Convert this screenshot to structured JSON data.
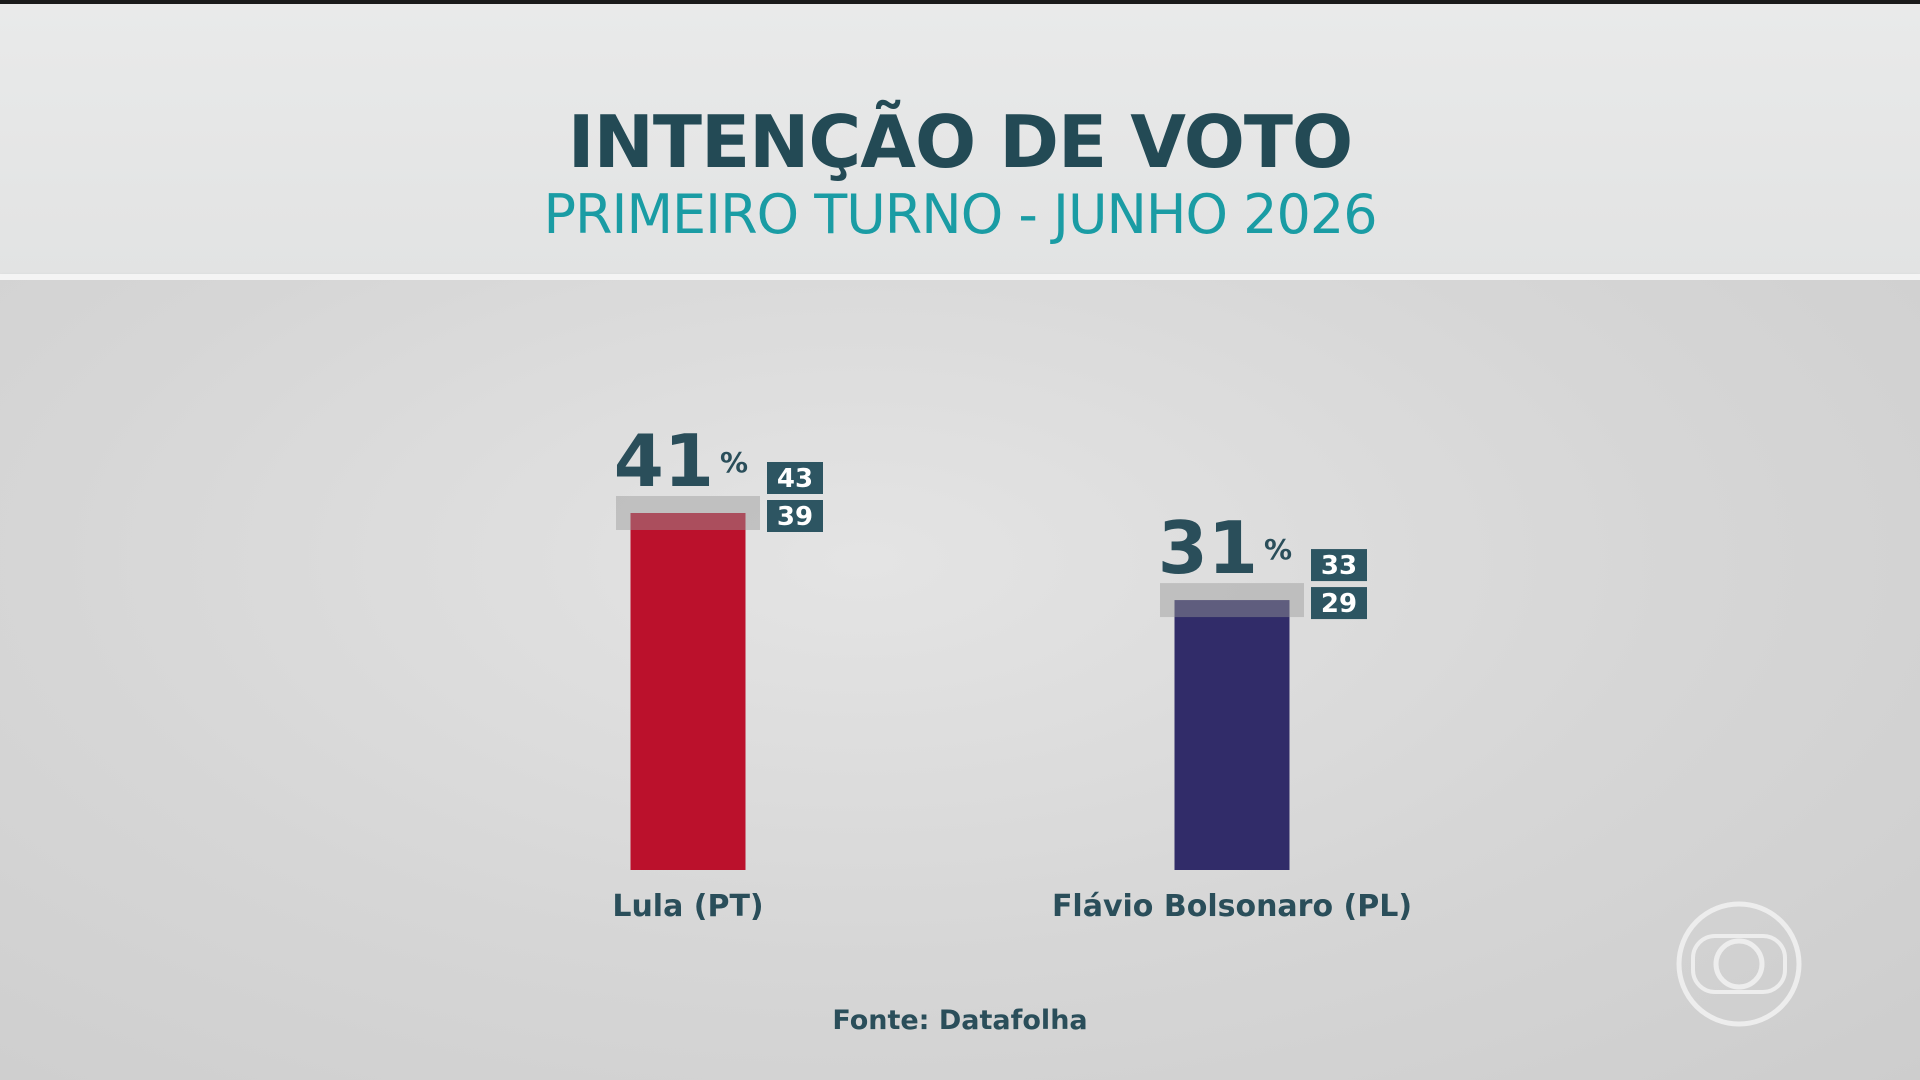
{
  "header": {
    "title": "INTENÇÃO DE VOTO",
    "subtitle": "PRIMEIRO TURNO - JUNHO 2026"
  },
  "source": "Fonte: Datafolha",
  "chart_data": {
    "type": "bar",
    "title": "INTENÇÃO DE VOTO",
    "subtitle": "PRIMEIRO TURNO - JUNHO 2026",
    "categories": [
      "Lula (PT)",
      "Flávio Bolsonaro (PL)"
    ],
    "values": [
      41,
      31
    ],
    "value_labels": [
      "41",
      "31"
    ],
    "unit": "%",
    "ranges": [
      {
        "high": "43",
        "low": "39",
        "high_value": 43,
        "low_value": 39
      },
      {
        "high": "33",
        "low": "29",
        "high_value": 33,
        "low_value": 29
      }
    ],
    "colors": [
      "#bb112c",
      "#312c69"
    ],
    "ylim": [
      0,
      41
    ],
    "grid": false,
    "xlabel": "",
    "ylabel": ""
  },
  "colors": {
    "title": "#234a55",
    "subtitle": "#1a9ca4",
    "label": "#2a4e5a",
    "range_box": "#2d5562"
  },
  "logo": {
    "icon": "tv-network-logo-icon"
  }
}
